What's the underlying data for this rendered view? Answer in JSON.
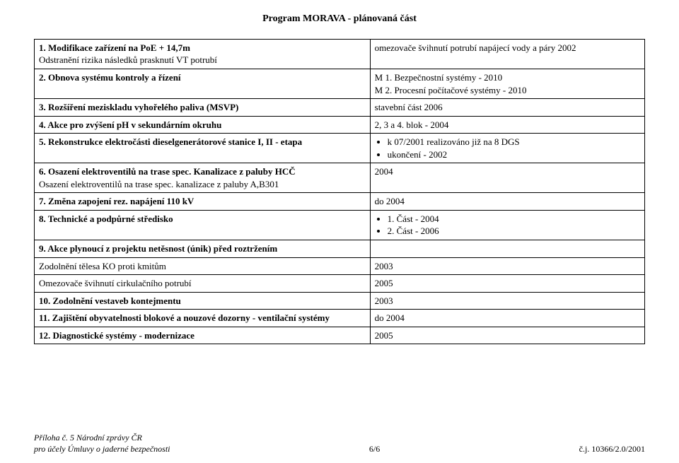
{
  "title": "Program MORAVA - plánovaná část",
  "colors": {
    "text": "#000000",
    "background": "#ffffff",
    "border": "#000000"
  },
  "fonts": {
    "family": "Times New Roman",
    "body_size_pt": 10,
    "title_size_pt": 11,
    "title_weight": "bold"
  },
  "table": {
    "col_widths_pct": [
      55,
      45
    ],
    "rows": [
      {
        "left_main": "1. Modifikace zařízení na PoE + 14,7m",
        "left_sub": "Odstranění rizika následků prasknutí VT potrubí",
        "right": "omezovače švihnutí potrubí napájecí vody a páry 2002"
      },
      {
        "left_main": "2. Obnova systému kontroly a řízení",
        "right_lines": [
          "M 1. Bezpečnostní systémy - 2010",
          "M 2. Procesní počítačové systémy - 2010"
        ]
      },
      {
        "left_main": "3. Rozšíření meziskladu vyhořelého paliva (MSVP)",
        "right": "stavební část 2006"
      },
      {
        "left_main": "4. Akce pro zvýšení pH v sekundárním okruhu",
        "right": "2, 3 a 4. blok - 2004"
      },
      {
        "left_main": "5. Rekonstrukce elektročásti dieselgenerátorové stanice I, II - etapa",
        "right_bullets": [
          "k 07/2001 realizováno již na 8 DGS",
          "ukončení - 2002"
        ]
      },
      {
        "left_main": "6. Osazení elektroventilů na trase spec. Kanalizace z paluby HCČ",
        "left_sub": "Osazení elektroventilů na trase spec. kanalizace z  paluby A,B301",
        "right": "2004"
      },
      {
        "left_main": "7. Změna zapojení rez. napájení 110 kV",
        "right": "do 2004"
      },
      {
        "left_main": "8. Technické a podpůrné středisko",
        "right_bullets": [
          "1. Část - 2004",
          "2. Část - 2006"
        ]
      },
      {
        "left_main": "9. Akce plynoucí z projektu netěsnost (únik) před roztržením",
        "left_sub1": "Zodolnění tělesa KO proti kmitům",
        "left_sub2": "Omezovače švihnutí cirkulačního potrubí",
        "right_blank": "",
        "right1": "2003",
        "right2": "2005"
      },
      {
        "left_main": "10. Zodolnění vestaveb kontejmentu",
        "right": "2003"
      },
      {
        "left_main": "11. Zajištění obyvatelnosti blokové a nouzové dozorny - ventilační systémy",
        "right": " do 2004"
      },
      {
        "left_main": "12.  Diagnostické systémy - modernizace",
        "right": "2005"
      }
    ]
  },
  "footer": {
    "left_line1": "Příloha č. 5 Národní zprávy ČR",
    "left_line2": "pro účely Úmluvy o jaderné bezpečnosti",
    "center": "6/6",
    "right": "č.j. 10366/2.0/2001"
  }
}
